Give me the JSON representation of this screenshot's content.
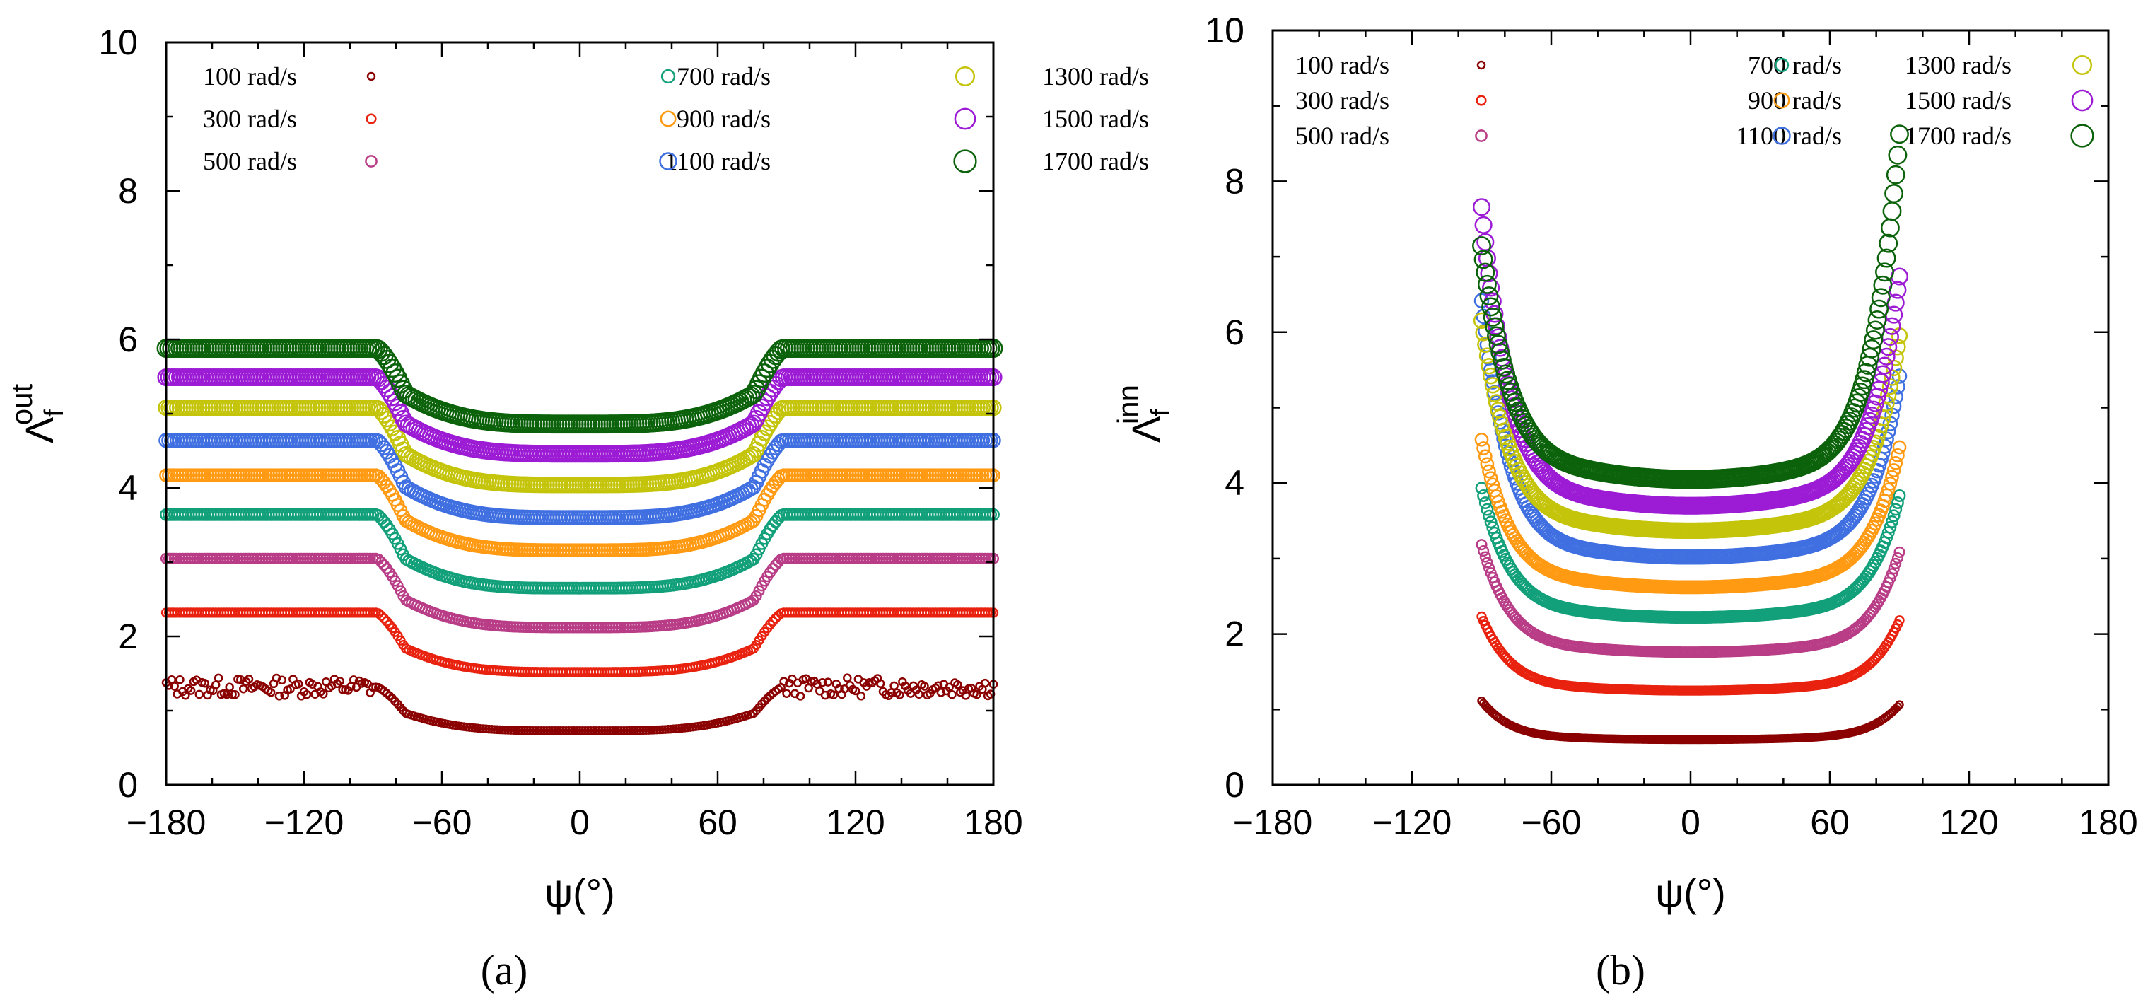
{
  "chart_data": [
    {
      "panel": "a",
      "type": "scatter",
      "panel_label": "(a)",
      "xlabel": "ψ(°)",
      "ylabel": "Λ_f^out",
      "ylabel_main": "Λ",
      "ylabel_sub": "f",
      "ylabel_sup": "out",
      "xlim": [
        -180,
        180
      ],
      "ylim": [
        0,
        10
      ],
      "xticks": [
        "−180",
        "−120",
        "−60",
        "0",
        "60",
        "120",
        "180"
      ],
      "yticks": [
        "0",
        "2",
        "4",
        "6",
        "8",
        "10"
      ],
      "legend_position": "top",
      "series": [
        {
          "name": "100 rad/s",
          "color": "#8b0000",
          "flat": 1.32,
          "center": 0.73,
          "transition_deg": 88
        },
        {
          "name": "300 rad/s",
          "color": "#e8220f",
          "flat": 2.32,
          "center": 1.52,
          "transition_deg": 88
        },
        {
          "name": "500 rad/s",
          "color": "#b83c86",
          "flat": 3.05,
          "center": 2.12,
          "transition_deg": 88
        },
        {
          "name": "700 rad/s",
          "color": "#12a07a",
          "flat": 3.64,
          "center": 2.65,
          "transition_deg": 88
        },
        {
          "name": "900 rad/s",
          "color": "#ff9a12",
          "flat": 4.17,
          "center": 3.16,
          "transition_deg": 88
        },
        {
          "name": "1100 rad/s",
          "color": "#3f6fe0",
          "flat": 4.64,
          "center": 3.6,
          "transition_deg": 88
        },
        {
          "name": "1300 rad/s",
          "color": "#c4c40a",
          "flat": 5.08,
          "center": 4.04,
          "transition_deg": 88
        },
        {
          "name": "1500 rad/s",
          "color": "#9c1bd4",
          "flat": 5.49,
          "center": 4.46,
          "transition_deg": 88
        },
        {
          "name": "1700 rad/s",
          "color": "#0b620b",
          "flat": 5.88,
          "center": 4.86,
          "transition_deg": 88
        }
      ]
    },
    {
      "panel": "b",
      "type": "scatter",
      "panel_label": "(b)",
      "xlabel": "ψ(°)",
      "ylabel": "Λ_f^inn",
      "ylabel_main": "Λ",
      "ylabel_sub": "f",
      "ylabel_sup": "inn",
      "xlim": [
        -180,
        180
      ],
      "ylim": [
        0,
        10
      ],
      "xticks": [
        "−180",
        "−120",
        "−60",
        "0",
        "60",
        "120",
        "180"
      ],
      "yticks": [
        "0",
        "2",
        "4",
        "6",
        "8",
        "10"
      ],
      "legend_position": "top",
      "domain_deg": [
        -90,
        90
      ],
      "series": [
        {
          "name": "100 rad/s",
          "color": "#8b0000",
          "center": 0.6,
          "edge_left": 1.05,
          "edge_right": 1.0
        },
        {
          "name": "300 rad/s",
          "color": "#e8220f",
          "center": 1.25,
          "edge_left": 2.1,
          "edge_right": 2.05
        },
        {
          "name": "500 rad/s",
          "color": "#b83c86",
          "center": 1.76,
          "edge_left": 3.0,
          "edge_right": 2.9
        },
        {
          "name": "700 rad/s",
          "color": "#12a07a",
          "center": 2.22,
          "edge_left": 3.7,
          "edge_right": 3.6
        },
        {
          "name": "900 rad/s",
          "color": "#ff9a12",
          "center": 2.62,
          "edge_left": 4.3,
          "edge_right": 4.2
        },
        {
          "name": "1100 rad/s",
          "color": "#3f6fe0",
          "center": 3.02,
          "edge_left": 6.1,
          "edge_right": 5.1
        },
        {
          "name": "1300 rad/s",
          "color": "#c4c40a",
          "center": 3.37,
          "edge_left": 5.8,
          "edge_right": 5.6
        },
        {
          "name": "1500 rad/s",
          "color": "#9c1bd4",
          "center": 3.7,
          "edge_left": 7.27,
          "edge_right": 6.35
        },
        {
          "name": "1700 rad/s",
          "color": "#0b620b",
          "center": 4.05,
          "edge_left": 6.72,
          "edge_right": 8.2
        }
      ]
    }
  ]
}
